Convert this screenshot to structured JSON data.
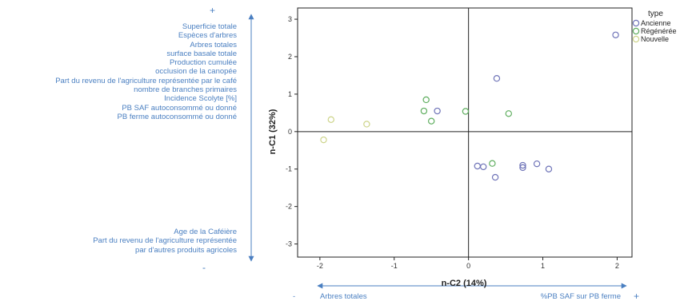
{
  "chart_data": {
    "type": "scatter",
    "xlabel": "n-C2 (14%)",
    "ylabel": "n-C1 (32%)",
    "xlim": [
      -2.3,
      2.2
    ],
    "ylim": [
      -3.35,
      3.3
    ],
    "xticks": [
      -2,
      -1,
      0,
      1,
      2
    ],
    "yticks": [
      3,
      2,
      1,
      0,
      -1,
      -2,
      -3
    ],
    "grid": false,
    "legend_title": "type",
    "legend_position": "top-right",
    "series": [
      {
        "name": "Ancienne",
        "color": "#6f74b8",
        "points": [
          [
            1.98,
            2.58
          ],
          [
            0.38,
            1.42
          ],
          [
            -0.42,
            0.55
          ],
          [
            0.12,
            -0.92
          ],
          [
            0.2,
            -0.94
          ],
          [
            0.36,
            -1.22
          ],
          [
            0.73,
            -0.9
          ],
          [
            0.73,
            -0.96
          ],
          [
            0.92,
            -0.86
          ],
          [
            1.08,
            -1.0
          ]
        ]
      },
      {
        "name": "Régénérée",
        "color": "#5fae5f",
        "points": [
          [
            -0.57,
            0.85
          ],
          [
            -0.6,
            0.55
          ],
          [
            -0.5,
            0.28
          ],
          [
            -0.04,
            0.54
          ],
          [
            0.54,
            0.48
          ],
          [
            0.32,
            -0.85
          ]
        ]
      },
      {
        "name": "Nouvelle",
        "color": "#cdd48a",
        "points": [
          [
            -1.85,
            0.32
          ],
          [
            -1.37,
            0.2
          ],
          [
            -1.95,
            -0.22
          ]
        ]
      }
    ]
  },
  "left_annotations": {
    "plus": "+",
    "minus": "-",
    "top_variables": [
      "Superficie totale",
      "Espèces d'arbres",
      "Arbres totales",
      "surface basale totale",
      "Production cumulée",
      "occlusion de la canopée",
      "Part du revenu de l'agriculture représentée par le café",
      "nombre de branches primaires",
      "Incidence Scolyte [%]",
      "PB SAF autoconsommé ou donné",
      "PB ferme autoconsommé ou donné"
    ],
    "bottom_variables": [
      "Age de la Caféière",
      "Part du revenu de l'agriculture représentée",
      "par d'autres produits agricoles"
    ]
  },
  "bottom_annotations": {
    "minus": "-",
    "left_label": "Arbres totales",
    "right_label": "%PB SAF sur PB ferme",
    "plus": "+"
  },
  "colors": {
    "annotation_blue": "#4a7fc1",
    "axis": "#222222"
  }
}
